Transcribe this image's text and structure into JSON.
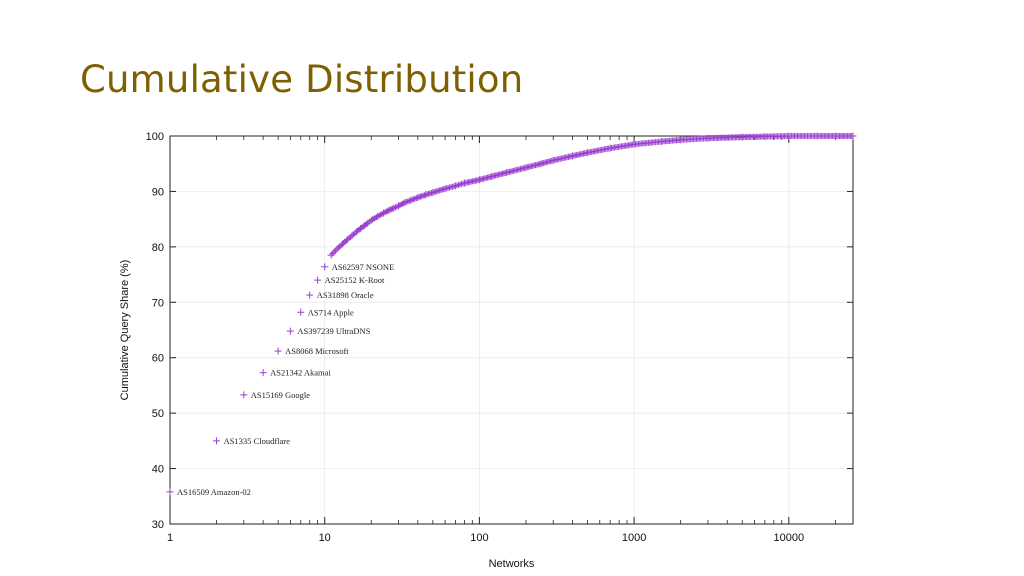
{
  "slide": {
    "title": "Cumulative Distribution"
  },
  "colors": {
    "series": "#9a3fd0",
    "axis": "#222222",
    "grid": "#e6e6e6",
    "title": "#7f6000"
  },
  "chart_data": {
    "type": "scatter",
    "title": "",
    "xlabel": "Networks",
    "ylabel": "Cumulative Query Share (%)",
    "xscale": "log",
    "xlim": [
      1,
      26000
    ],
    "ylim": [
      30,
      100
    ],
    "grid": true,
    "marker": "plus",
    "xticks": [
      {
        "value": 1,
        "label": "1"
      },
      {
        "value": 10,
        "label": "10"
      },
      {
        "value": 100,
        "label": "100"
      },
      {
        "value": 1000,
        "label": "1000"
      },
      {
        "value": 10000,
        "label": "10000"
      }
    ],
    "yticks": [
      {
        "value": 30,
        "label": "30"
      },
      {
        "value": 40,
        "label": "40"
      },
      {
        "value": 50,
        "label": "50"
      },
      {
        "value": 60,
        "label": "60"
      },
      {
        "value": 70,
        "label": "70"
      },
      {
        "value": 80,
        "label": "80"
      },
      {
        "value": 90,
        "label": "90"
      },
      {
        "value": 100,
        "label": "100"
      }
    ],
    "series": [
      {
        "x": [
          1,
          2,
          3,
          4,
          5,
          6,
          7,
          8,
          9,
          10,
          11,
          12,
          13,
          14,
          15,
          16,
          17,
          18,
          19,
          20,
          22,
          24,
          26,
          28,
          30,
          33,
          36,
          40,
          45,
          50,
          60,
          70,
          80,
          100,
          120,
          150,
          200,
          250,
          300,
          400,
          500,
          700,
          1000,
          1500,
          2000,
          3000,
          5000,
          7000,
          10000,
          15000,
          20000,
          26000
        ],
        "y": [
          35.8,
          45.0,
          53.3,
          57.3,
          61.2,
          64.8,
          68.2,
          71.3,
          74.0,
          76.4,
          78.5,
          79.6,
          80.5,
          81.3,
          82.0,
          82.7,
          83.3,
          83.8,
          84.3,
          84.8,
          85.5,
          86.1,
          86.6,
          87.0,
          87.4,
          88.0,
          88.4,
          88.9,
          89.4,
          89.8,
          90.5,
          91.0,
          91.5,
          92.1,
          92.7,
          93.4,
          94.3,
          95.0,
          95.6,
          96.4,
          97.0,
          97.8,
          98.5,
          99.0,
          99.3,
          99.6,
          99.8,
          99.9,
          100.0,
          100.0,
          100.0,
          100.0
        ]
      }
    ],
    "annotations": [
      {
        "x": 1,
        "y": 35.8,
        "text": "AS16509 Amazon-02"
      },
      {
        "x": 2,
        "y": 45.0,
        "text": "AS1335 Cloudflare"
      },
      {
        "x": 3,
        "y": 53.3,
        "text": "AS15169 Google"
      },
      {
        "x": 4,
        "y": 57.3,
        "text": "AS21342 Akamai"
      },
      {
        "x": 5,
        "y": 61.2,
        "text": "AS8068 Microsoft"
      },
      {
        "x": 6,
        "y": 64.8,
        "text": "AS397239 UltraDNS"
      },
      {
        "x": 7,
        "y": 68.2,
        "text": "AS714 Apple"
      },
      {
        "x": 8,
        "y": 71.3,
        "text": "AS31898 Oracle"
      },
      {
        "x": 9,
        "y": 74.0,
        "text": "AS25152 K-Root"
      },
      {
        "x": 10,
        "y": 76.4,
        "text": "AS62597 NSONE"
      }
    ]
  }
}
